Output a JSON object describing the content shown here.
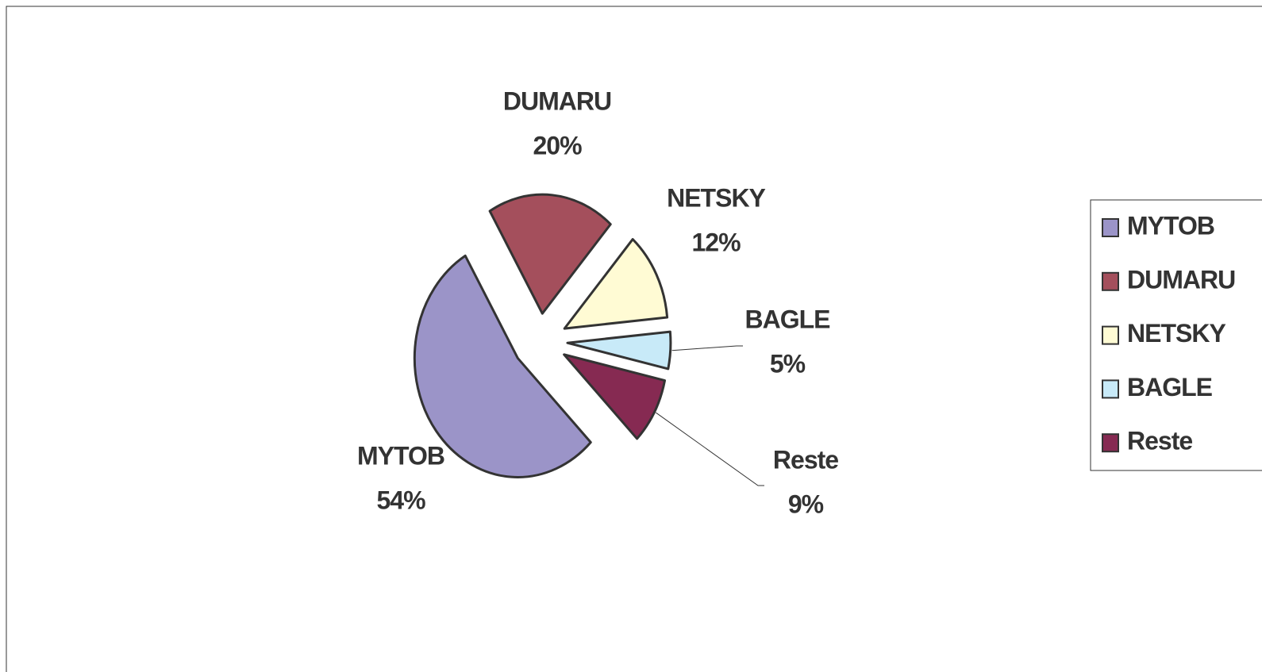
{
  "chart_data": {
    "type": "pie",
    "categories": [
      "MYTOB",
      "DUMARU",
      "NETSKY",
      "BAGLE",
      "Reste"
    ],
    "values": [
      54,
      20,
      12,
      5,
      9
    ],
    "value_labels": [
      "54%",
      "20%",
      "12%",
      "5%",
      "9%"
    ],
    "colors": [
      "#9b94c8",
      "#a44f5c",
      "#fffbd4",
      "#c8eaf8",
      "#862a52"
    ],
    "legend": "right"
  }
}
